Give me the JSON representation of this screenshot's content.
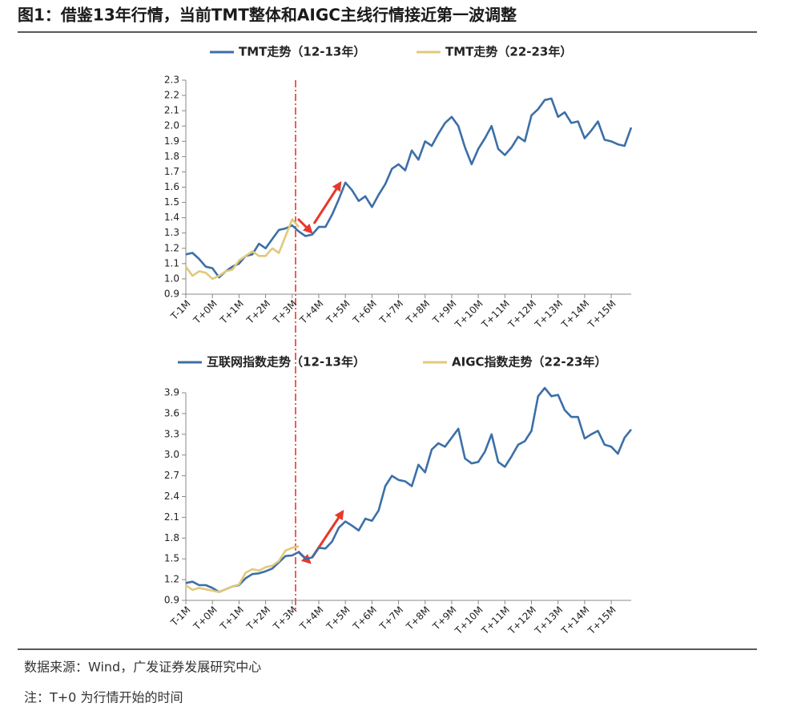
{
  "header": {
    "title": "图1：借鉴13年行情，当前TMT整体和AIGC主线行情接近第一波调整"
  },
  "chart_data": [
    {
      "type": "line",
      "legend": "top",
      "categories": [
        "T-1M",
        null,
        null,
        null,
        "T+0M",
        null,
        null,
        null,
        "T+1M",
        null,
        null,
        null,
        "T+2M",
        null,
        null,
        null,
        "T+3M",
        null,
        null,
        null,
        "T+4M",
        null,
        null,
        null,
        "T+5M",
        null,
        null,
        null,
        "T+6M",
        null,
        null,
        null,
        "T+7M",
        null,
        null,
        null,
        "T+8M",
        null,
        null,
        null,
        "T+9M",
        null,
        null,
        null,
        "T+10M",
        null,
        null,
        null,
        "T+11M",
        null,
        null,
        null,
        "T+12M",
        null,
        null,
        null,
        "T+13M",
        null,
        null,
        null,
        "T+14M",
        null,
        null,
        null,
        "T+15M",
        null,
        null,
        null
      ],
      "ylim": [
        0.9,
        2.3
      ],
      "yticks": [
        0.9,
        {
          "value": 1,
          "label": "1.0"
        },
        1.1,
        1.2,
        1.3,
        1.4,
        1.5,
        1.6,
        1.7,
        1.8,
        1.9,
        {
          "value": 2,
          "label": "2.0"
        },
        2.1,
        2.2,
        2.3
      ],
      "series": [
        {
          "name": "TMT走势（12-13年）",
          "color": "#3c6fa8",
          "values": [
            1.16,
            1.17,
            1.13,
            1.08,
            1.07,
            1.01,
            1.05,
            1.08,
            1.1,
            1.15,
            1.16,
            1.23,
            1.2,
            1.26,
            1.32,
            1.33,
            1.35,
            1.31,
            1.28,
            1.29,
            1.34,
            1.34,
            1.42,
            1.52,
            1.63,
            1.58,
            1.51,
            1.54,
            1.47,
            1.55,
            1.62,
            1.72,
            1.75,
            1.71,
            1.84,
            1.78,
            1.9,
            1.87,
            1.95,
            2.02,
            2.06,
            2.0,
            1.86,
            1.75,
            1.85,
            1.92,
            2.0,
            1.85,
            1.81,
            1.86,
            1.93,
            1.9,
            2.07,
            2.11,
            2.17,
            2.18,
            2.06,
            2.09,
            2.02,
            2.03,
            1.92,
            1.97,
            2.03,
            1.91,
            1.9,
            1.88,
            1.87,
            1.99
          ]
        },
        {
          "name": "TMT走势（22-23年）",
          "color": "#e2c87a",
          "values": [
            1.08,
            1.02,
            1.05,
            1.04,
            1.0,
            1.02,
            1.05,
            1.06,
            1.12,
            1.15,
            1.18,
            1.15,
            1.15,
            1.2,
            1.17,
            1.28,
            1.39,
            1.34,
            null,
            null,
            null,
            null,
            null,
            null,
            null,
            null,
            null,
            null,
            null,
            null,
            null,
            null,
            null,
            null,
            null,
            null,
            null,
            null,
            null,
            null,
            null,
            null,
            null,
            null,
            null,
            null,
            null,
            null,
            null,
            null,
            null,
            null,
            null,
            null,
            null,
            null,
            null,
            null,
            null,
            null,
            null,
            null,
            null,
            null,
            null,
            null,
            null,
            null
          ]
        }
      ]
    },
    {
      "type": "line",
      "legend": "top",
      "categories": [
        "T-1M",
        null,
        null,
        null,
        "T+0M",
        null,
        null,
        null,
        "T+1M",
        null,
        null,
        null,
        "T+2M",
        null,
        null,
        null,
        "T+3M",
        null,
        null,
        null,
        "T+4M",
        null,
        null,
        null,
        "T+5M",
        null,
        null,
        null,
        "T+6M",
        null,
        null,
        null,
        "T+7M",
        null,
        null,
        null,
        "T+8M",
        null,
        null,
        null,
        "T+9M",
        null,
        null,
        null,
        "T+10M",
        null,
        null,
        null,
        "T+11M",
        null,
        null,
        null,
        "T+12M",
        null,
        null,
        null,
        "T+13M",
        null,
        null,
        null,
        "T+14M",
        null,
        null,
        null,
        "T+15M",
        null,
        null,
        null
      ],
      "ylim": [
        0.9,
        3.9
      ],
      "yticks": [
        0.9,
        1.2,
        1.5,
        1.8,
        2.1,
        2.4,
        2.7,
        {
          "value": 3,
          "label": "3.0"
        },
        3.3,
        3.6,
        3.9
      ],
      "series": [
        {
          "name": "互联网指数走势（12-13年）",
          "color": "#3c6fa8",
          "values": [
            1.15,
            1.17,
            1.12,
            1.12,
            1.08,
            1.02,
            1.06,
            1.1,
            1.12,
            1.22,
            1.28,
            1.29,
            1.32,
            1.36,
            1.45,
            1.54,
            1.55,
            1.6,
            1.5,
            1.52,
            1.66,
            1.65,
            1.75,
            1.95,
            2.04,
            1.98,
            1.91,
            2.08,
            2.05,
            2.2,
            2.55,
            2.7,
            2.64,
            2.62,
            2.55,
            2.86,
            2.75,
            3.08,
            3.17,
            3.12,
            3.25,
            3.38,
            2.95,
            2.88,
            2.9,
            3.05,
            3.3,
            2.9,
            2.83,
            2.98,
            3.15,
            3.2,
            3.35,
            3.85,
            3.97,
            3.85,
            3.87,
            3.65,
            3.55,
            3.55,
            3.24,
            3.3,
            3.35,
            3.15,
            3.12,
            3.02,
            3.25,
            3.37
          ]
        },
        {
          "name": "AIGC指数走势（22-23年）",
          "color": "#e2c87a",
          "values": [
            1.12,
            1.05,
            1.08,
            1.06,
            1.04,
            1.02,
            1.06,
            1.1,
            1.13,
            1.3,
            1.35,
            1.33,
            1.38,
            1.4,
            1.47,
            1.62,
            1.66,
            1.68,
            null,
            null,
            null,
            null,
            null,
            null,
            null,
            null,
            null,
            null,
            null,
            null,
            null,
            null,
            null,
            null,
            null,
            null,
            null,
            null,
            null,
            null,
            null,
            null,
            null,
            null,
            null,
            null,
            null,
            null,
            null,
            null,
            null,
            null,
            null,
            null,
            null,
            null,
            null,
            null,
            null,
            null,
            null,
            null,
            null,
            null,
            null,
            null,
            null,
            null
          ]
        }
      ]
    }
  ],
  "footer": {
    "source": "数据来源：Wind，广发证券发展研究中心",
    "note": "注：T+0 为行情开始的时间"
  }
}
